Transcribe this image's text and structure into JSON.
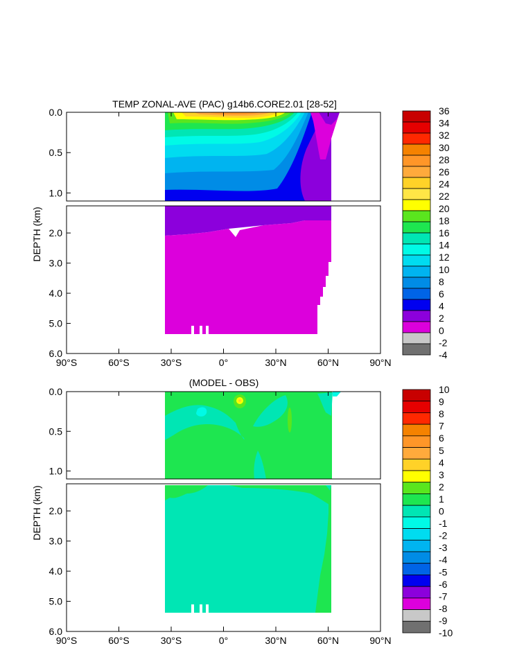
{
  "chart_data": [
    {
      "type": "heatmap",
      "title": "TEMP ZONAL-AVE (PAC) g14b6.CORE2.01 [28-52]",
      "ylabel": "DEPTH (km)",
      "x_ticks": [
        "90°S",
        "60°S",
        "30°S",
        "0°",
        "30°N",
        "60°N",
        "90°N"
      ],
      "y_ticks_upper": [
        "0.0",
        "0.5",
        "1.0"
      ],
      "y_ticks_lower": [
        "2.0",
        "3.0",
        "4.0",
        "5.0",
        "6.0"
      ],
      "xlim": [
        -90,
        90
      ],
      "ylim_km": [
        0,
        6
      ],
      "colorbar_labels": [
        "36",
        "34",
        "32",
        "30",
        "28",
        "26",
        "24",
        "22",
        "20",
        "18",
        "16",
        "14",
        "12",
        "10",
        "8",
        "6",
        "4",
        "2",
        "0",
        "-2",
        "-4"
      ],
      "colorbar_colors": [
        "#c80000",
        "#e60000",
        "#ff2800",
        "#f58200",
        "#ff9628",
        "#ffaa3c",
        "#ffd228",
        "#ffe646",
        "#ffff00",
        "#5ae61e",
        "#1ee650",
        "#00e6b4",
        "#00fae6",
        "#00dcf0",
        "#00b4f0",
        "#008ce6",
        "#0064e6",
        "#0000f0",
        "#8c00dc",
        "#dc00dc",
        "#c8c8c8",
        "#707070"
      ]
    },
    {
      "type": "heatmap",
      "title": "(MODEL - OBS)",
      "ylabel": "DEPTH (km)",
      "x_ticks": [
        "90°S",
        "60°S",
        "30°S",
        "0°",
        "30°N",
        "60°N",
        "90°N"
      ],
      "y_ticks_upper": [
        "0.0",
        "0.5",
        "1.0"
      ],
      "y_ticks_lower": [
        "2.0",
        "3.0",
        "4.0",
        "5.0",
        "6.0"
      ],
      "xlim": [
        -90,
        90
      ],
      "ylim_km": [
        0,
        6
      ],
      "colorbar_labels": [
        "10",
        "9",
        "8",
        "7",
        "6",
        "5",
        "4",
        "3",
        "2",
        "1",
        "0",
        "-1",
        "-2",
        "-3",
        "-4",
        "-5",
        "-6",
        "-7",
        "-8",
        "-9",
        "-10"
      ],
      "colorbar_colors": [
        "#c80000",
        "#e60000",
        "#ff2800",
        "#f58200",
        "#ff9628",
        "#ffaa3c",
        "#ffd228",
        "#ffff00",
        "#5ae61e",
        "#1ee650",
        "#00e6b4",
        "#00fae6",
        "#00dcf0",
        "#00b4f0",
        "#008ce6",
        "#0064e6",
        "#0000f0",
        "#8c00dc",
        "#dc00dc",
        "#c8c8c8",
        "#707070"
      ]
    }
  ]
}
